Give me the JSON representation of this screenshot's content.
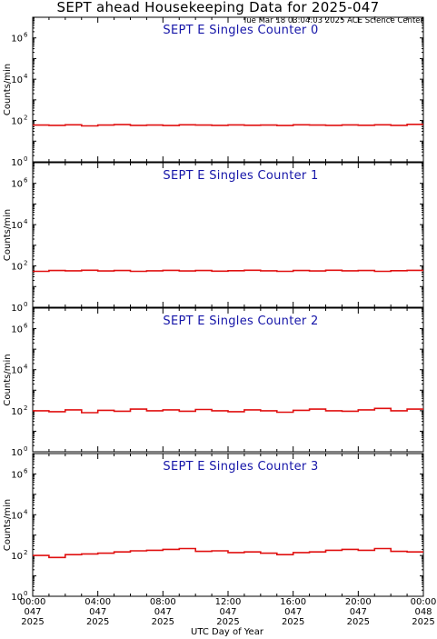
{
  "figure": {
    "title": "SEPT ahead Housekeeping Data for 2025-047",
    "timestamp": "Tue Mar 18 03:04:03 2025 ACE Science Center",
    "xlabel": "UTC Day of Year"
  },
  "colors": {
    "trace": "#e01010",
    "panel_title": "#1515a8",
    "axes": "#000000"
  },
  "chart_data": [
    {
      "type": "line",
      "title": "SEPT E Singles Counter 0",
      "ylabel": "Counts/min",
      "yscale": "log",
      "ylim": [
        1,
        10000000
      ],
      "y_ticks": [
        {
          "base": "10",
          "exp": "0"
        },
        {
          "base": "10",
          "exp": "2"
        },
        {
          "base": "10",
          "exp": "4"
        },
        {
          "base": "10",
          "exp": "6"
        }
      ],
      "x_ticks": [
        {
          "time": "00:00",
          "day": "047",
          "year": "2025"
        },
        {
          "time": "04:00",
          "day": "047",
          "year": "2025"
        },
        {
          "time": "08:00",
          "day": "047",
          "year": "2025"
        },
        {
          "time": "12:00",
          "day": "047",
          "year": "2025"
        },
        {
          "time": "16:00",
          "day": "047",
          "year": "2025"
        },
        {
          "time": "20:00",
          "day": "047",
          "year": "2025"
        },
        {
          "time": "00:00",
          "day": "048",
          "year": "2025"
        }
      ],
      "xlim_hours": [
        0,
        24
      ],
      "series": [
        {
          "x_hours": [
            0,
            1,
            2,
            3,
            4,
            5,
            6,
            7,
            8,
            9,
            10,
            11,
            12,
            13,
            14,
            15,
            16,
            17,
            18,
            19,
            20,
            21,
            22,
            23,
            24
          ],
          "values": [
            60,
            58,
            62,
            55,
            60,
            63,
            58,
            60,
            57,
            62,
            60,
            58,
            61,
            59,
            60,
            57,
            62,
            60,
            58,
            61,
            59,
            62,
            58,
            65,
            60
          ]
        }
      ]
    },
    {
      "type": "line",
      "title": "SEPT E Singles Counter 1",
      "ylabel": "Counts/min",
      "yscale": "log",
      "ylim": [
        1,
        10000000
      ],
      "y_ticks": [
        {
          "base": "10",
          "exp": "0"
        },
        {
          "base": "10",
          "exp": "2"
        },
        {
          "base": "10",
          "exp": "4"
        },
        {
          "base": "10",
          "exp": "6"
        }
      ],
      "x_ticks": [
        {
          "time": "00:00",
          "day": "047",
          "year": "2025"
        },
        {
          "time": "04:00",
          "day": "047",
          "year": "2025"
        },
        {
          "time": "08:00",
          "day": "047",
          "year": "2025"
        },
        {
          "time": "12:00",
          "day": "047",
          "year": "2025"
        },
        {
          "time": "16:00",
          "day": "047",
          "year": "2025"
        },
        {
          "time": "20:00",
          "day": "047",
          "year": "2025"
        },
        {
          "time": "00:00",
          "day": "048",
          "year": "2025"
        }
      ],
      "xlim_hours": [
        0,
        24
      ],
      "series": [
        {
          "x_hours": [
            0,
            1,
            2,
            3,
            4,
            5,
            6,
            7,
            8,
            9,
            10,
            11,
            12,
            13,
            14,
            15,
            16,
            17,
            18,
            19,
            20,
            21,
            22,
            23,
            24
          ],
          "values": [
            55,
            60,
            58,
            62,
            57,
            60,
            55,
            58,
            61,
            57,
            60,
            56,
            59,
            62,
            58,
            55,
            60,
            57,
            62,
            58,
            60,
            55,
            59,
            61,
            60
          ]
        }
      ]
    },
    {
      "type": "line",
      "title": "SEPT E Singles Counter 2",
      "ylabel": "Counts/min",
      "yscale": "log",
      "ylim": [
        1,
        10000000
      ],
      "y_ticks": [
        {
          "base": "10",
          "exp": "0"
        },
        {
          "base": "10",
          "exp": "2"
        },
        {
          "base": "10",
          "exp": "4"
        },
        {
          "base": "10",
          "exp": "6"
        }
      ],
      "x_ticks": [
        {
          "time": "00:00",
          "day": "047",
          "year": "2025"
        },
        {
          "time": "04:00",
          "day": "047",
          "year": "2025"
        },
        {
          "time": "08:00",
          "day": "047",
          "year": "2025"
        },
        {
          "time": "12:00",
          "day": "047",
          "year": "2025"
        },
        {
          "time": "16:00",
          "day": "047",
          "year": "2025"
        },
        {
          "time": "20:00",
          "day": "047",
          "year": "2025"
        },
        {
          "time": "00:00",
          "day": "048",
          "year": "2025"
        }
      ],
      "xlim_hours": [
        0,
        24
      ],
      "series": [
        {
          "x_hours": [
            0,
            1,
            2,
            3,
            4,
            5,
            6,
            7,
            8,
            9,
            10,
            11,
            12,
            13,
            14,
            15,
            16,
            17,
            18,
            19,
            20,
            21,
            22,
            23,
            24
          ],
          "values": [
            100,
            90,
            110,
            80,
            105,
            95,
            120,
            100,
            110,
            95,
            115,
            100,
            90,
            110,
            100,
            85,
            105,
            120,
            100,
            95,
            110,
            130,
            100,
            120,
            100
          ]
        }
      ]
    },
    {
      "type": "line",
      "title": "SEPT E Singles Counter 3",
      "ylabel": "Counts/min",
      "yscale": "log",
      "ylim": [
        1,
        10000000
      ],
      "y_ticks": [
        {
          "base": "10",
          "exp": "0"
        },
        {
          "base": "10",
          "exp": "2"
        },
        {
          "base": "10",
          "exp": "4"
        },
        {
          "base": "10",
          "exp": "6"
        }
      ],
      "x_ticks": [
        {
          "time": "00:00",
          "day": "047",
          "year": "2025"
        },
        {
          "time": "04:00",
          "day": "047",
          "year": "2025"
        },
        {
          "time": "08:00",
          "day": "047",
          "year": "2025"
        },
        {
          "time": "12:00",
          "day": "047",
          "year": "2025"
        },
        {
          "time": "16:00",
          "day": "047",
          "year": "2025"
        },
        {
          "time": "20:00",
          "day": "047",
          "year": "2025"
        },
        {
          "time": "00:00",
          "day": "048",
          "year": "2025"
        }
      ],
      "xlim_hours": [
        0,
        24
      ],
      "series": [
        {
          "x_hours": [
            0,
            1,
            2,
            3,
            4,
            5,
            6,
            7,
            8,
            9,
            10,
            11,
            12,
            13,
            14,
            15,
            16,
            17,
            18,
            19,
            20,
            21,
            22,
            23,
            24
          ],
          "values": [
            100,
            80,
            110,
            120,
            130,
            150,
            170,
            180,
            200,
            220,
            160,
            170,
            140,
            150,
            130,
            110,
            140,
            150,
            180,
            200,
            180,
            220,
            160,
            150,
            130
          ]
        }
      ]
    }
  ]
}
